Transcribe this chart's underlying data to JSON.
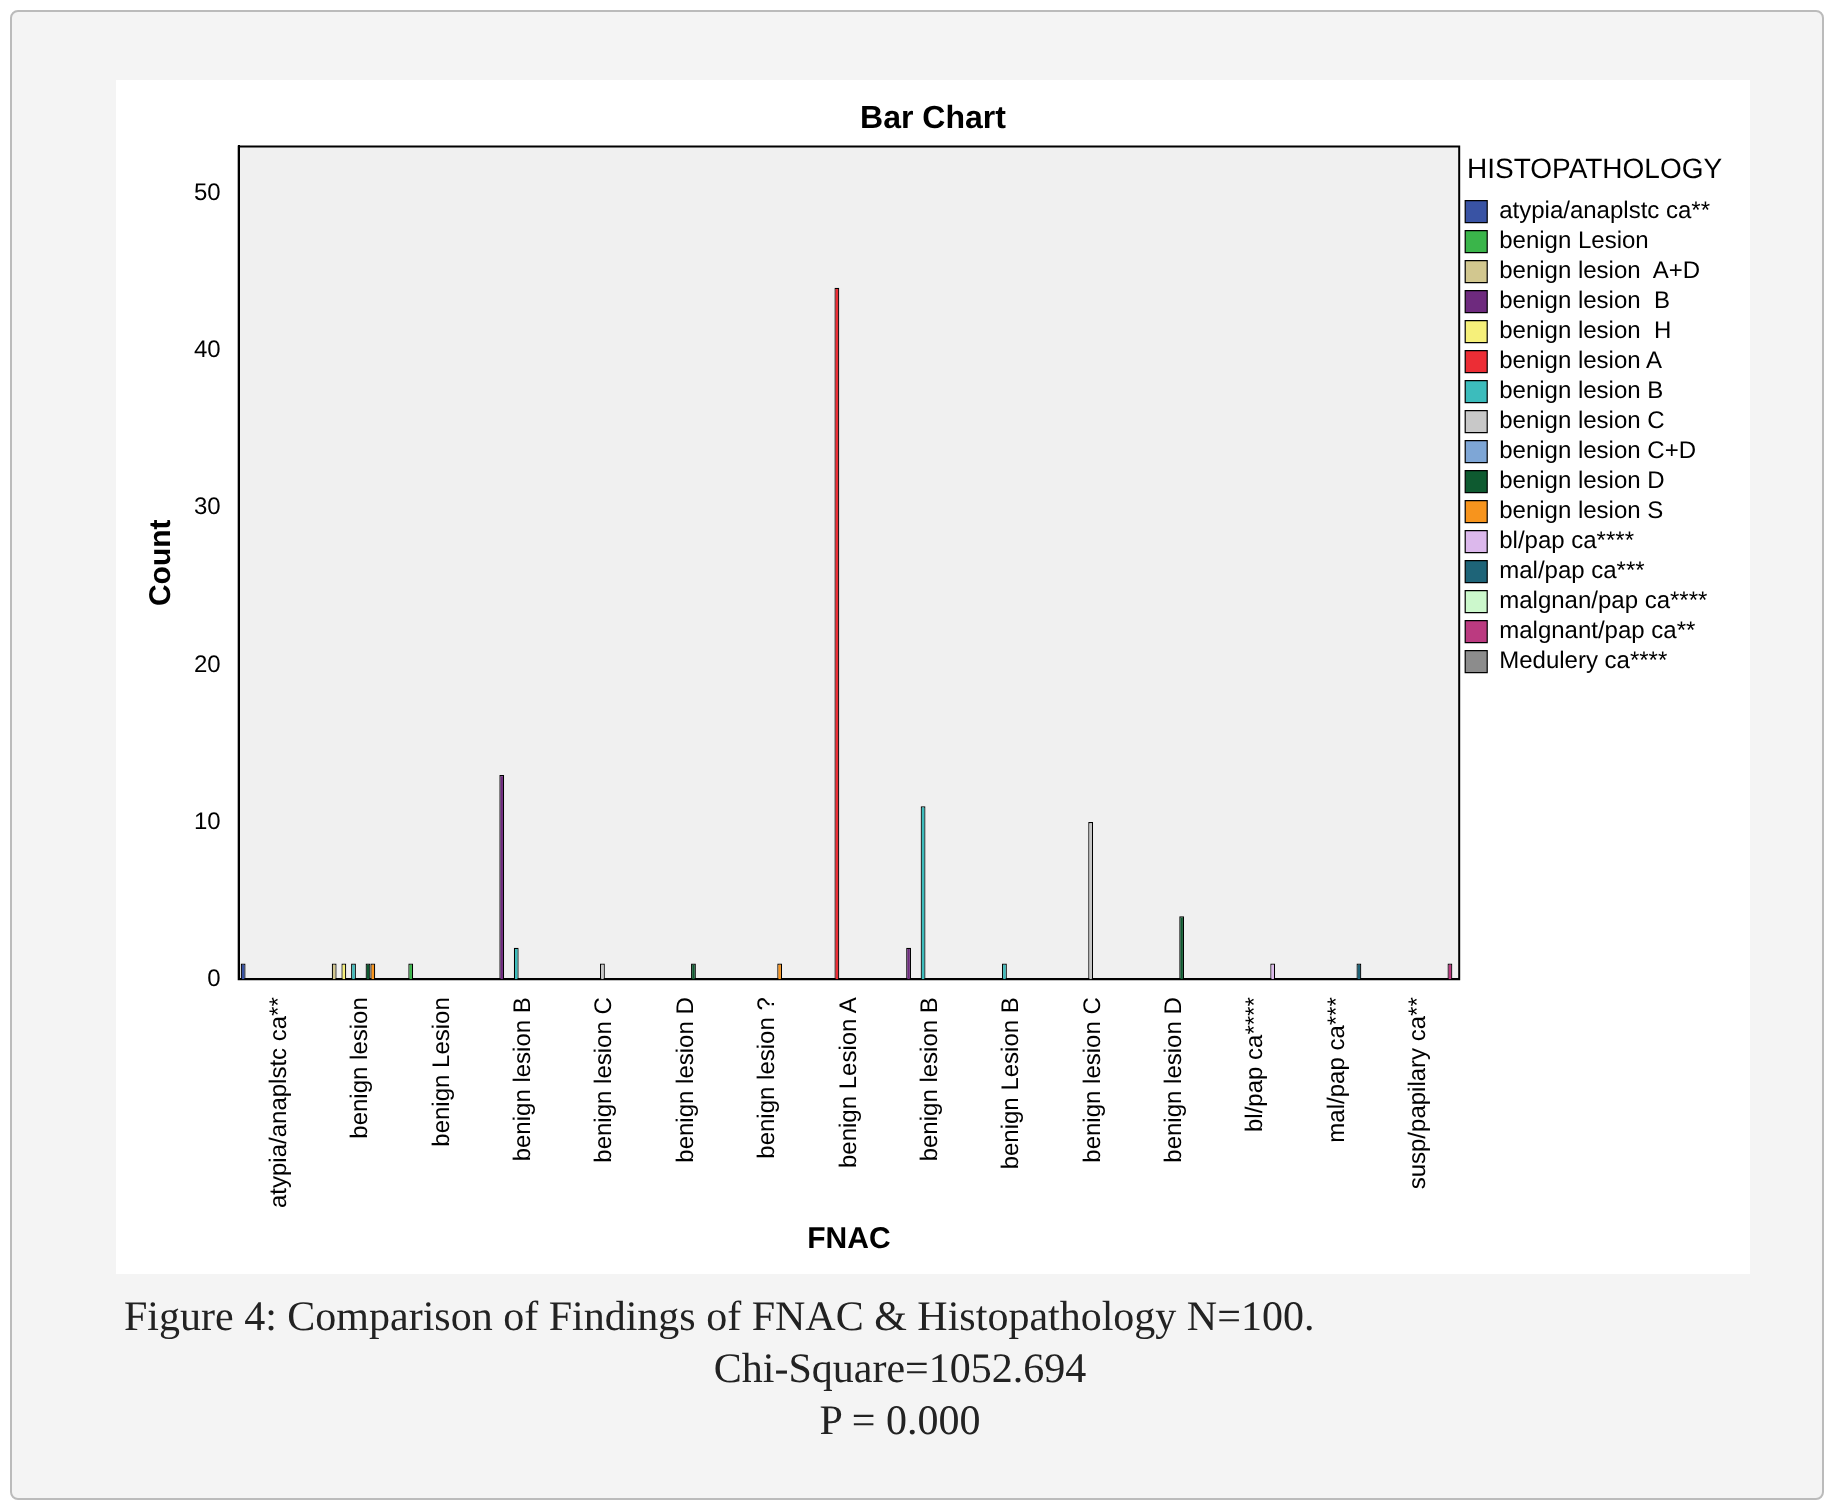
{
  "chart_data": {
    "type": "bar",
    "title": "Bar Chart",
    "xlabel": "FNAC",
    "ylabel": "Count",
    "legend_title": "HISTOPATHOLOGY",
    "legend": "right",
    "grid": false,
    "categories": [
      "atypia/anaplstc ca**",
      "benign lesion",
      "benign Lesion",
      "benign lesion B",
      "benign lesion C",
      "benign lesion D",
      "benign lesion ?",
      "benign Lesion A",
      "benign lesion B",
      "benign Lesion B",
      "benign lesion C",
      "benign lesion D",
      "bl/pap ca****",
      "mal/pap ca***",
      "susp/papilary ca**"
    ],
    "ylim": [
      0,
      53
    ],
    "yticks": [
      0,
      10,
      20,
      30,
      40,
      50
    ],
    "series": [
      {
        "name": "atypia/anaplstc ca**",
        "color": "#3953a4",
        "values": [
          1,
          null,
          null,
          null,
          null,
          null,
          null,
          null,
          null,
          null,
          null,
          null,
          null,
          null,
          null
        ]
      },
      {
        "name": "benign Lesion",
        "color": "#3ab54a",
        "values": [
          null,
          null,
          1,
          null,
          null,
          null,
          null,
          null,
          null,
          null,
          null,
          null,
          null,
          null,
          null
        ]
      },
      {
        "name": "benign lesion  A+D",
        "color": "#d2c78f",
        "values": [
          null,
          1,
          null,
          null,
          null,
          null,
          null,
          null,
          null,
          null,
          null,
          null,
          null,
          null,
          null
        ]
      },
      {
        "name": "benign lesion  B",
        "color": "#6e2a7e",
        "values": [
          null,
          null,
          null,
          13,
          null,
          null,
          null,
          null,
          2,
          null,
          null,
          null,
          null,
          null,
          null
        ]
      },
      {
        "name": "benign lesion  H",
        "color": "#f6f07a",
        "values": [
          null,
          1,
          null,
          null,
          null,
          null,
          null,
          null,
          null,
          null,
          null,
          null,
          null,
          null,
          null
        ]
      },
      {
        "name": "benign lesion A",
        "color": "#ec2d35",
        "values": [
          null,
          null,
          null,
          null,
          null,
          null,
          null,
          44,
          null,
          null,
          null,
          null,
          null,
          null,
          null
        ]
      },
      {
        "name": "benign lesion B",
        "color": "#3cbcbc",
        "values": [
          null,
          1,
          null,
          2,
          null,
          null,
          null,
          null,
          11,
          1,
          null,
          null,
          null,
          null,
          null
        ]
      },
      {
        "name": "benign lesion C",
        "color": "#c8c8c8",
        "values": [
          null,
          null,
          null,
          null,
          1,
          null,
          null,
          null,
          null,
          null,
          10,
          null,
          null,
          null,
          null
        ]
      },
      {
        "name": "benign lesion C+D",
        "color": "#7ea6d6",
        "values": [
          null,
          null,
          null,
          null,
          null,
          null,
          null,
          null,
          null,
          null,
          null,
          null,
          null,
          null,
          null
        ]
      },
      {
        "name": "benign lesion D",
        "color": "#0e5a30",
        "values": [
          null,
          1,
          null,
          null,
          null,
          1,
          null,
          null,
          null,
          null,
          null,
          4,
          null,
          null,
          null
        ]
      },
      {
        "name": "benign lesion S",
        "color": "#f7941d",
        "values": [
          null,
          1,
          null,
          null,
          null,
          null,
          1,
          null,
          null,
          null,
          null,
          null,
          null,
          null,
          null
        ]
      },
      {
        "name": "bl/pap ca****",
        "color": "#dcb8ec",
        "values": [
          null,
          null,
          null,
          null,
          null,
          null,
          null,
          null,
          null,
          null,
          null,
          null,
          1,
          null,
          null
        ]
      },
      {
        "name": "mal/pap ca***",
        "color": "#1e6478",
        "values": [
          null,
          null,
          null,
          null,
          null,
          null,
          null,
          null,
          null,
          null,
          null,
          null,
          null,
          1,
          null
        ]
      },
      {
        "name": "malgnan/pap ca****",
        "color": "#ccf8cc",
        "values": [
          null,
          null,
          null,
          null,
          null,
          null,
          null,
          null,
          null,
          null,
          null,
          null,
          null,
          null,
          null
        ]
      },
      {
        "name": "malgnant/pap ca**",
        "color": "#bb3a80",
        "values": [
          null,
          null,
          null,
          null,
          null,
          null,
          null,
          null,
          null,
          null,
          null,
          null,
          null,
          null,
          1
        ]
      },
      {
        "name": "Medulery ca****",
        "color": "#8c8c8c",
        "values": [
          null,
          null,
          null,
          null,
          null,
          null,
          null,
          null,
          null,
          null,
          null,
          null,
          null,
          null,
          null
        ]
      }
    ],
    "annotations": [
      "Figure 4: Comparison of Findings of FNAC & Histopathology N=100.",
      "Chi-Square=1052.694",
      "P = 0.000"
    ]
  }
}
